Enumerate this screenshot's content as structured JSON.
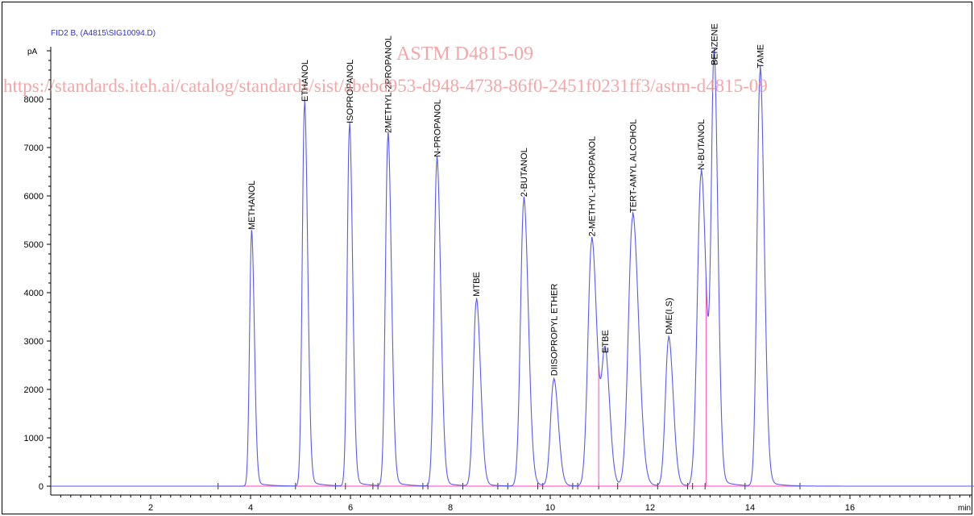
{
  "header": {
    "signal_label": "FID2 B,  (A4815\\SIG10094.D)",
    "y_unit": "pA",
    "x_unit": "min"
  },
  "watermark": {
    "title": "ASTM D4815-09",
    "url": "https://standards.iteh.ai/catalog/standards/sist/abebd953-d948-4738-86f0-2451f0231ff3/astm-d4815-09"
  },
  "colors": {
    "signal": "#5a5aee",
    "baseline": "#ff66cc",
    "axis": "#000000",
    "label": "#000000",
    "header": "#3333cc"
  },
  "chart_data": {
    "type": "line",
    "title": "FID2 B,  (A4815\\SIG10094.D)",
    "xlabel": "min",
    "ylabel": "pA",
    "xlim": [
      0,
      18.7
    ],
    "ylim": [
      -400,
      9300
    ],
    "x_ticks": [
      2,
      4,
      6,
      8,
      10,
      12,
      14,
      16
    ],
    "y_ticks": [
      0,
      1000,
      2000,
      3000,
      4000,
      5000,
      6000,
      7000,
      8000
    ],
    "grid": false,
    "baseline_segments": [
      [
        3.35,
        15.0
      ]
    ],
    "baseline_markers": [
      3.35,
      4.9,
      5.7,
      5.9,
      6.45,
      6.55,
      7.45,
      7.55,
      8.25,
      8.95,
      9.15,
      9.75,
      9.85,
      10.45,
      10.55,
      10.97,
      11.35,
      12.15,
      12.75,
      12.85,
      13.1,
      13.9,
      15.0
    ],
    "peaks": [
      {
        "name": "METHANOL",
        "rt": 4.02,
        "height": 5200,
        "width": 0.04
      },
      {
        "name": "ETHANOL",
        "rt": 5.08,
        "height": 7850,
        "width": 0.045
      },
      {
        "name": "ISOPROPANOL",
        "rt": 5.98,
        "height": 7400,
        "width": 0.045
      },
      {
        "name": "2METHYL-2PROPANOL",
        "rt": 6.75,
        "height": 7200,
        "width": 0.05
      },
      {
        "name": "N-PROPANOL",
        "rt": 7.73,
        "height": 6700,
        "width": 0.055
      },
      {
        "name": "MTBE",
        "rt": 8.52,
        "height": 3820,
        "width": 0.06
      },
      {
        "name": "2-BUTANOL",
        "rt": 9.47,
        "height": 5880,
        "width": 0.065
      },
      {
        "name": "DIISOPROPYL ETHER",
        "rt": 10.07,
        "height": 2180,
        "width": 0.065
      },
      {
        "name": "2-METHYL-1PROPANOL",
        "rt": 10.83,
        "height": 5060,
        "width": 0.075
      },
      {
        "name": "ETBE",
        "rt": 11.1,
        "height": 2650,
        "width": 0.065
      },
      {
        "name": "TERT-AMYL ALCOHOL",
        "rt": 11.65,
        "height": 5550,
        "width": 0.085
      },
      {
        "name": "DME(I.S)",
        "rt": 12.37,
        "height": 3040,
        "width": 0.065
      },
      {
        "name": "N-BUTANOL",
        "rt": 13.02,
        "height": 6440,
        "width": 0.075
      },
      {
        "name": "BENZENE",
        "rt": 13.28,
        "height": 8600,
        "width": 0.055
      },
      {
        "name": "TAME",
        "rt": 14.2,
        "height": 8540,
        "width": 0.06
      }
    ]
  }
}
